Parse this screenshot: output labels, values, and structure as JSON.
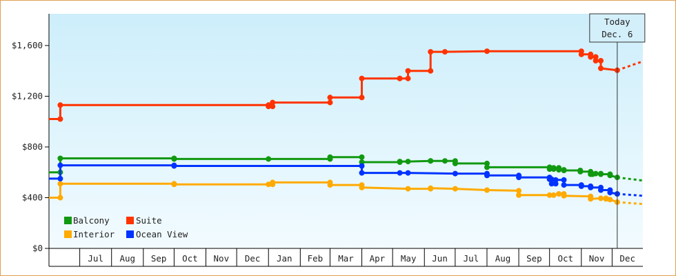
{
  "chart_data": {
    "type": "line",
    "title": "",
    "xlabel": "",
    "ylabel": "",
    "ylim": [
      0,
      1850
    ],
    "y_ticks": [
      {
        "value": 0,
        "label": "$0"
      },
      {
        "value": 400,
        "label": "$400"
      },
      {
        "value": 800,
        "label": "$800"
      },
      {
        "value": 1200,
        "label": "$1,200"
      },
      {
        "value": 1600,
        "label": "$1,600"
      }
    ],
    "x_start": "2023-06-01",
    "x_end": "2024-12-31",
    "month_ticks": [
      {
        "date": "2023-06-01",
        "label": ""
      },
      {
        "date": "2023-07-01",
        "label": "Jul"
      },
      {
        "date": "2023-08-01",
        "label": "Aug"
      },
      {
        "date": "2023-09-01",
        "label": "Sep"
      },
      {
        "date": "2023-10-01",
        "label": "Oct"
      },
      {
        "date": "2023-11-01",
        "label": "Nov"
      },
      {
        "date": "2023-12-01",
        "label": "Dec"
      },
      {
        "date": "2024-01-01",
        "label": "Jan"
      },
      {
        "date": "2024-02-01",
        "label": "Feb"
      },
      {
        "date": "2024-03-01",
        "label": "Mar"
      },
      {
        "date": "2024-04-01",
        "label": "Apr"
      },
      {
        "date": "2024-05-01",
        "label": "May"
      },
      {
        "date": "2024-06-01",
        "label": "Jun"
      },
      {
        "date": "2024-07-01",
        "label": "Jul"
      },
      {
        "date": "2024-08-01",
        "label": "Aug"
      },
      {
        "date": "2024-09-01",
        "label": "Sep"
      },
      {
        "date": "2024-10-01",
        "label": "Oct"
      },
      {
        "date": "2024-11-01",
        "label": "Nov"
      },
      {
        "date": "2024-12-01",
        "label": "Dec"
      }
    ],
    "today": {
      "date": "2024-12-06",
      "line1": "Today",
      "line2": "Dec. 6"
    },
    "grid": false,
    "legend_position": "bottom-left",
    "series": [
      {
        "name": "Balcony",
        "color": "#119911",
        "points": [
          [
            "2023-06-01",
            600
          ],
          [
            "2023-06-12",
            600
          ],
          [
            "2023-06-12",
            710
          ],
          [
            "2023-10-01",
            710
          ],
          [
            "2023-10-01",
            705
          ],
          [
            "2024-01-01",
            705
          ],
          [
            "2024-03-01",
            705
          ],
          [
            "2024-03-01",
            720
          ],
          [
            "2024-04-01",
            720
          ],
          [
            "2024-04-01",
            680
          ],
          [
            "2024-05-08",
            680
          ],
          [
            "2024-05-08",
            685
          ],
          [
            "2024-05-16",
            685
          ],
          [
            "2024-06-07",
            690
          ],
          [
            "2024-06-07",
            690
          ],
          [
            "2024-06-21",
            690
          ],
          [
            "2024-07-01",
            690
          ],
          [
            "2024-07-01",
            670
          ],
          [
            "2024-08-01",
            670
          ],
          [
            "2024-08-01",
            640
          ],
          [
            "2024-10-01",
            640
          ],
          [
            "2024-10-01",
            625
          ],
          [
            "2024-10-05",
            625
          ],
          [
            "2024-10-05",
            635
          ],
          [
            "2024-10-10",
            635
          ],
          [
            "2024-10-10",
            620
          ],
          [
            "2024-10-15",
            620
          ],
          [
            "2024-10-15",
            615
          ],
          [
            "2024-10-31",
            615
          ],
          [
            "2024-10-31",
            605
          ],
          [
            "2024-11-10",
            605
          ],
          [
            "2024-11-10",
            585
          ],
          [
            "2024-11-12",
            585
          ],
          [
            "2024-11-15",
            590
          ],
          [
            "2024-11-20",
            590
          ],
          [
            "2024-11-20",
            585
          ],
          [
            "2024-11-29",
            585
          ],
          [
            "2024-11-29",
            575
          ],
          [
            "2024-12-06",
            560
          ]
        ],
        "projection": [
          [
            "2024-12-06",
            560
          ],
          [
            "2024-12-31",
            535
          ]
        ]
      },
      {
        "name": "Suite",
        "color": "#ff3300",
        "points": [
          [
            "2023-06-01",
            1020
          ],
          [
            "2023-06-12",
            1020
          ],
          [
            "2023-06-12",
            1130
          ],
          [
            "2024-01-01",
            1130
          ],
          [
            "2024-01-01",
            1120
          ],
          [
            "2024-01-05",
            1120
          ],
          [
            "2024-01-05",
            1150
          ],
          [
            "2024-03-01",
            1150
          ],
          [
            "2024-03-01",
            1190
          ],
          [
            "2024-04-01",
            1190
          ],
          [
            "2024-04-01",
            1340
          ],
          [
            "2024-05-08",
            1340
          ],
          [
            "2024-05-08",
            1340
          ],
          [
            "2024-05-16",
            1340
          ],
          [
            "2024-05-16",
            1400
          ],
          [
            "2024-06-07",
            1400
          ],
          [
            "2024-06-07",
            1550
          ],
          [
            "2024-06-21",
            1550
          ],
          [
            "2024-08-01",
            1555
          ],
          [
            "2024-11-01",
            1555
          ],
          [
            "2024-11-01",
            1530
          ],
          [
            "2024-11-10",
            1530
          ],
          [
            "2024-11-10",
            1510
          ],
          [
            "2024-11-15",
            1510
          ],
          [
            "2024-11-15",
            1480
          ],
          [
            "2024-11-20",
            1480
          ],
          [
            "2024-11-20",
            1420
          ],
          [
            "2024-12-06",
            1405
          ]
        ],
        "projection": [
          [
            "2024-12-06",
            1405
          ],
          [
            "2024-12-31",
            1475
          ]
        ]
      },
      {
        "name": "Interior",
        "color": "#ffaa00",
        "points": [
          [
            "2023-06-01",
            400
          ],
          [
            "2023-06-12",
            400
          ],
          [
            "2023-06-12",
            510
          ],
          [
            "2023-10-01",
            510
          ],
          [
            "2023-10-01",
            505
          ],
          [
            "2024-01-01",
            505
          ],
          [
            "2024-01-05",
            505
          ],
          [
            "2024-01-05",
            520
          ],
          [
            "2024-03-01",
            520
          ],
          [
            "2024-03-01",
            500
          ],
          [
            "2024-04-01",
            500
          ],
          [
            "2024-04-01",
            480
          ],
          [
            "2024-05-16",
            470
          ],
          [
            "2024-06-07",
            470
          ],
          [
            "2024-06-07",
            475
          ],
          [
            "2024-07-01",
            470
          ],
          [
            "2024-08-01",
            460
          ],
          [
            "2024-09-01",
            455
          ],
          [
            "2024-09-01",
            420
          ],
          [
            "2024-10-01",
            420
          ],
          [
            "2024-10-05",
            420
          ],
          [
            "2024-10-10",
            430
          ],
          [
            "2024-10-15",
            430
          ],
          [
            "2024-10-15",
            415
          ],
          [
            "2024-11-10",
            410
          ],
          [
            "2024-11-10",
            390
          ],
          [
            "2024-11-20",
            395
          ],
          [
            "2024-11-25",
            395
          ],
          [
            "2024-11-25",
            390
          ],
          [
            "2024-11-29",
            385
          ],
          [
            "2024-12-06",
            365
          ]
        ],
        "projection": [
          [
            "2024-12-06",
            365
          ],
          [
            "2024-12-31",
            350
          ]
        ]
      },
      {
        "name": "Ocean View",
        "color": "#0033ff",
        "points": [
          [
            "2023-06-01",
            550
          ],
          [
            "2023-06-12",
            550
          ],
          [
            "2023-06-12",
            655
          ],
          [
            "2023-10-01",
            655
          ],
          [
            "2023-10-01",
            650
          ],
          [
            "2024-04-01",
            650
          ],
          [
            "2024-04-01",
            595
          ],
          [
            "2024-05-08",
            595
          ],
          [
            "2024-05-16",
            595
          ],
          [
            "2024-07-01",
            590
          ],
          [
            "2024-08-01",
            590
          ],
          [
            "2024-08-01",
            575
          ],
          [
            "2024-09-01",
            575
          ],
          [
            "2024-09-01",
            560
          ],
          [
            "2024-10-01",
            560
          ],
          [
            "2024-10-01",
            545
          ],
          [
            "2024-10-03",
            545
          ],
          [
            "2024-10-03",
            510
          ],
          [
            "2024-10-07",
            510
          ],
          [
            "2024-10-07",
            540
          ],
          [
            "2024-10-15",
            540
          ],
          [
            "2024-10-15",
            500
          ],
          [
            "2024-11-01",
            500
          ],
          [
            "2024-11-01",
            490
          ],
          [
            "2024-11-10",
            490
          ],
          [
            "2024-11-10",
            480
          ],
          [
            "2024-11-20",
            480
          ],
          [
            "2024-11-20",
            460
          ],
          [
            "2024-11-29",
            460
          ],
          [
            "2024-11-29",
            440
          ],
          [
            "2024-12-06",
            430
          ]
        ],
        "projection": [
          [
            "2024-12-06",
            430
          ],
          [
            "2024-12-31",
            415
          ]
        ]
      }
    ]
  }
}
